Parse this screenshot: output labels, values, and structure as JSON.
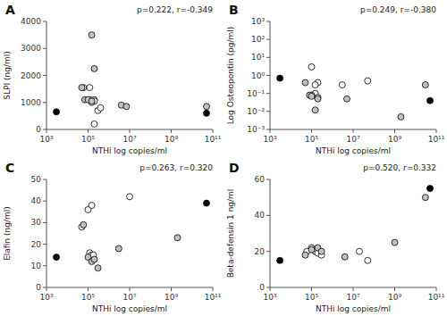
{
  "chart_data": [
    {
      "type": "scatter",
      "title": "A",
      "xlabel": "NTHi log copies/ml",
      "ylabel": "SLPI (ng/ml)",
      "annotation": "p=0.222, r=-0.349",
      "log": "x",
      "grid": false,
      "xlim": [
        1000.0,
        100000000000.0
      ],
      "xticks": [
        {
          "value": 1000.0,
          "label": "10³"
        },
        {
          "value": 100000.0,
          "label": "10⁵"
        },
        {
          "value": 10000000.0,
          "label": "10⁷"
        },
        {
          "value": 1000000000.0,
          "label": "10⁹"
        },
        {
          "value": 100000000000.0,
          "label": "10¹¹"
        }
      ],
      "ylim": [
        0,
        4000
      ],
      "yticks": [
        0,
        1000,
        2000,
        3000,
        4000
      ],
      "series": [
        {
          "color": "white",
          "x": [
            60000.0,
            120000.0,
            120000.0,
            200000.0,
            200000.0,
            150000.0,
            300000.0,
            400000.0,
            200000.0
          ],
          "values": [
            1550,
            1550,
            1100,
            1100,
            1050,
            1000,
            700,
            800,
            200
          ]
        },
        {
          "color": "#c0c0c0",
          "x": [
            150000.0,
            200000.0,
            50000.0,
            70000.0,
            100000.0,
            150000.0,
            4000000.0,
            7000000.0,
            50000000000.0
          ],
          "values": [
            3500,
            2250,
            1550,
            1100,
            1100,
            1050,
            900,
            850,
            850
          ]
        },
        {
          "color": "black",
          "x": [
            3000.0,
            50000000000.0
          ],
          "values": [
            650,
            600
          ]
        }
      ]
    },
    {
      "type": "scatter",
      "title": "B",
      "xlabel": "NTHi log copies/ml",
      "ylabel": "Log Osteopontin (pg/ml)",
      "annotation": "p=0.249, r=-0.380",
      "log": true,
      "grid": false,
      "xlim": [
        1000.0,
        100000000000.0
      ],
      "xticks": [
        {
          "value": 1000.0,
          "label": "10³"
        },
        {
          "value": 100000.0,
          "label": "10⁵"
        },
        {
          "value": 10000000.0,
          "label": "10⁷"
        },
        {
          "value": 1000000000.0,
          "label": "10⁹"
        },
        {
          "value": 100000000000.0,
          "label": "10¹¹"
        }
      ],
      "ylim": [
        0.001,
        1000
      ],
      "yticks": [
        {
          "value": 0.001,
          "label": "10⁻³"
        },
        {
          "value": 0.01,
          "label": "10⁻²"
        },
        {
          "value": 0.1,
          "label": "10⁻¹"
        },
        {
          "value": 1,
          "label": "10⁰"
        },
        {
          "value": 10,
          "label": "10¹"
        },
        {
          "value": 100,
          "label": "10²"
        },
        {
          "value": 1000,
          "label": "10³"
        }
      ],
      "series": [
        {
          "color": "white",
          "x": [
            100000.0,
            200000.0,
            150000.0,
            3000000.0,
            150000.0,
            100000.0,
            200000.0,
            50000000.0
          ],
          "values": [
            3.0,
            0.4,
            0.3,
            0.3,
            0.1,
            0.08,
            0.06,
            0.5
          ]
        },
        {
          "color": "#c0c0c0",
          "x": [
            50000.0,
            80000.0,
            100000.0,
            200000.0,
            150000.0,
            5000000.0,
            2000000000.0,
            30000000000.0
          ],
          "values": [
            0.4,
            0.08,
            0.07,
            0.05,
            0.012,
            0.05,
            0.005,
            0.3
          ]
        },
        {
          "color": "black",
          "x": [
            3000.0,
            50000000000.0
          ],
          "values": [
            0.7,
            0.04
          ]
        }
      ]
    },
    {
      "type": "scatter",
      "title": "C",
      "xlabel": "NTHi log copies/ml",
      "ylabel": "Elafin (ng/ml)",
      "annotation": "p=0.263, r=0.320",
      "log": "x",
      "grid": false,
      "xlim": [
        1000.0,
        100000000000.0
      ],
      "xticks": [
        {
          "value": 1000.0,
          "label": "10³"
        },
        {
          "value": 100000.0,
          "label": "10⁵"
        },
        {
          "value": 10000000.0,
          "label": "10⁷"
        },
        {
          "value": 1000000000.0,
          "label": "10⁹"
        },
        {
          "value": 100000000000.0,
          "label": "10¹¹"
        }
      ],
      "ylim": [
        0,
        50
      ],
      "yticks": [
        0,
        10,
        20,
        30,
        40,
        50
      ],
      "series": [
        {
          "color": "white",
          "x": [
            50000.0,
            100000.0,
            150000.0,
            120000.0,
            150000.0,
            180000.0,
            10000000.0
          ],
          "values": [
            28,
            36,
            38,
            16,
            15,
            15,
            42
          ]
        },
        {
          "color": "#c0c0c0",
          "x": [
            60000.0,
            100000.0,
            150000.0,
            200000.0,
            300000.0,
            3000000.0,
            2000000000.0
          ],
          "values": [
            29,
            14,
            12,
            13,
            9,
            18,
            23
          ]
        },
        {
          "color": "black",
          "x": [
            3000.0,
            50000000000.0
          ],
          "values": [
            14,
            39
          ]
        }
      ]
    },
    {
      "type": "scatter",
      "title": "D",
      "xlabel": "NTHi log copies/ml",
      "ylabel": "Beta-defensin 1 ng/ml",
      "annotation": "p=0.520, r=0.332",
      "log": "x",
      "grid": false,
      "xlim": [
        1000.0,
        100000000000.0
      ],
      "xticks": [
        {
          "value": 1000.0,
          "label": "10³"
        },
        {
          "value": 100000.0,
          "label": "10⁵"
        },
        {
          "value": 10000000.0,
          "label": "10⁷"
        },
        {
          "value": 1000000000.0,
          "label": "10⁹"
        },
        {
          "value": 100000000000.0,
          "label": "10¹¹"
        }
      ],
      "ylim": [
        0,
        60
      ],
      "yticks": [
        0,
        20,
        40,
        60
      ],
      "series": [
        {
          "color": "white",
          "x": [
            60000.0,
            100000.0,
            150000.0,
            200000.0,
            300000.0,
            20000000.0,
            50000000.0
          ],
          "values": [
            20,
            22,
            20,
            19,
            18,
            20,
            15
          ]
        },
        {
          "color": "#c0c0c0",
          "x": [
            50000.0,
            100000.0,
            200000.0,
            300000.0,
            4000000.0,
            1000000000.0,
            30000000000.0
          ],
          "values": [
            18,
            21,
            22,
            20,
            17,
            25,
            50
          ]
        },
        {
          "color": "black",
          "x": [
            3000.0,
            50000000000.0
          ],
          "values": [
            15,
            55
          ]
        }
      ]
    }
  ]
}
